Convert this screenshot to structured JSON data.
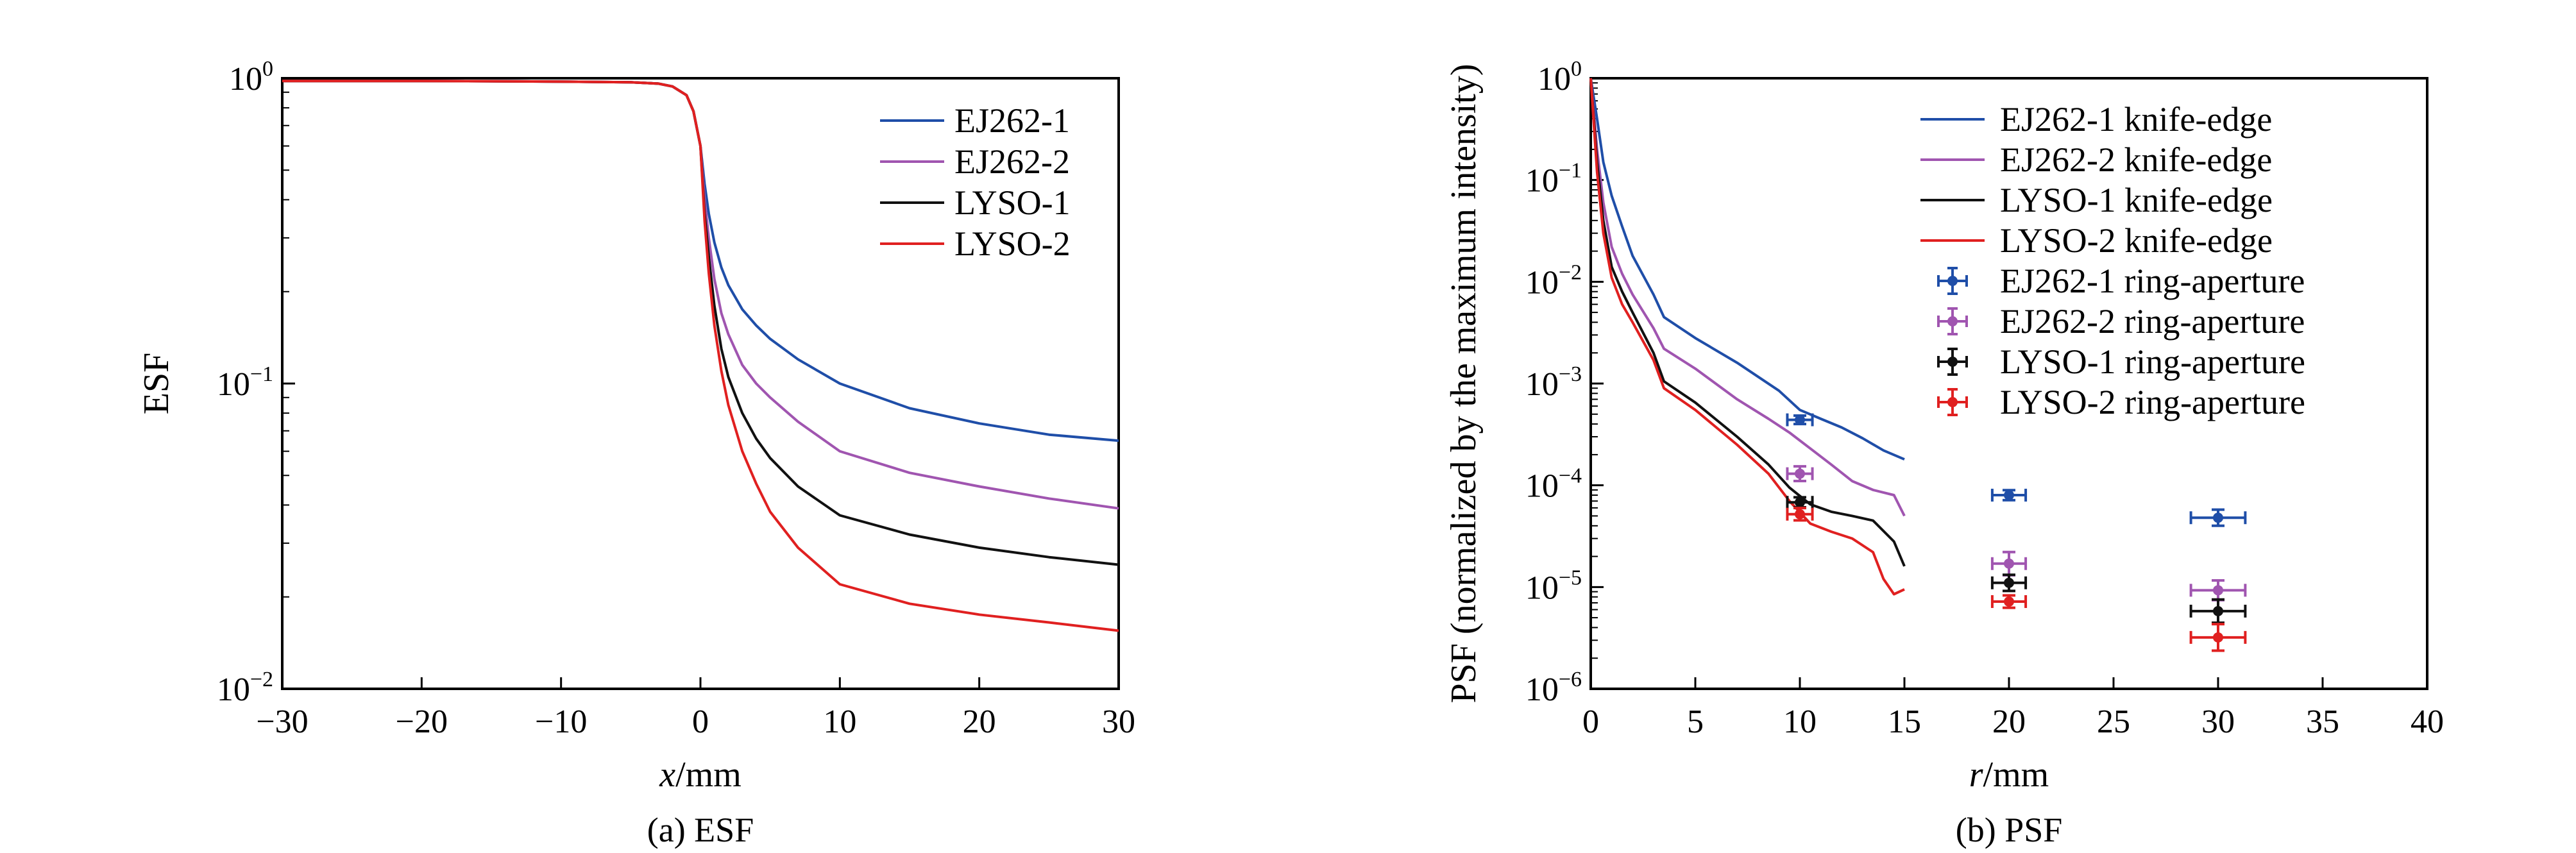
{
  "chart_data": [
    {
      "type": "line",
      "panel": "a",
      "caption": "(a) ESF",
      "xlabel_italic": "x",
      "xlabel_unit": "/mm",
      "ylabel": "ESF",
      "xlim": [
        -30,
        30
      ],
      "ylim": [
        0.01,
        1
      ],
      "yscale": "log",
      "grid": false,
      "legend_position": "top-right",
      "xticks": [
        "−30",
        "−20",
        "−10",
        "0",
        "10",
        "20",
        "30"
      ],
      "xtick_values": [
        -30,
        -20,
        -10,
        0,
        10,
        20,
        30
      ],
      "yticks": [
        {
          "base": "10",
          "exp": "0",
          "value": 1
        },
        {
          "base": "10",
          "exp": "−1",
          "value": 0.1
        },
        {
          "base": "10",
          "exp": "−2",
          "value": 0.01
        }
      ],
      "x": [
        -30,
        -20,
        -10,
        -5,
        -3,
        -2,
        -1,
        -0.5,
        0,
        0.3,
        0.6,
        1,
        1.5,
        2,
        3,
        4,
        5,
        7,
        10,
        15,
        20,
        25,
        30
      ],
      "series": [
        {
          "name": "EJ262-1",
          "color": "#1f4ea8",
          "values": [
            0.98,
            0.98,
            0.975,
            0.97,
            0.96,
            0.94,
            0.88,
            0.78,
            0.6,
            0.45,
            0.36,
            0.29,
            0.24,
            0.21,
            0.175,
            0.155,
            0.14,
            0.12,
            0.1,
            0.083,
            0.074,
            0.068,
            0.065
          ]
        },
        {
          "name": "EJ262-2",
          "color": "#a055b0",
          "values": [
            0.98,
            0.98,
            0.975,
            0.97,
            0.96,
            0.94,
            0.88,
            0.78,
            0.6,
            0.4,
            0.3,
            0.22,
            0.17,
            0.145,
            0.115,
            0.1,
            0.09,
            0.075,
            0.06,
            0.051,
            0.046,
            0.042,
            0.039
          ]
        },
        {
          "name": "LYSO-1",
          "color": "#111111",
          "values": [
            0.98,
            0.98,
            0.975,
            0.97,
            0.96,
            0.94,
            0.88,
            0.78,
            0.6,
            0.36,
            0.26,
            0.18,
            0.13,
            0.105,
            0.08,
            0.066,
            0.057,
            0.046,
            0.037,
            0.032,
            0.029,
            0.027,
            0.0255
          ]
        },
        {
          "name": "LYSO-2",
          "color": "#e02020",
          "values": [
            0.98,
            0.98,
            0.975,
            0.97,
            0.96,
            0.94,
            0.88,
            0.78,
            0.6,
            0.34,
            0.23,
            0.155,
            0.11,
            0.085,
            0.06,
            0.047,
            0.038,
            0.029,
            0.022,
            0.019,
            0.0175,
            0.0165,
            0.0155
          ]
        }
      ]
    },
    {
      "type": "line",
      "panel": "b",
      "caption": "(b) PSF",
      "xlabel_italic": "r",
      "xlabel_unit": "/mm",
      "ylabel": "PSF (normalized by the maximum intensity)",
      "xlim": [
        0,
        40
      ],
      "ylim": [
        1e-06,
        1
      ],
      "yscale": "log",
      "grid": false,
      "legend_position": "top-right",
      "xticks": [
        "0",
        "5",
        "10",
        "15",
        "20",
        "25",
        "30",
        "35",
        "40"
      ],
      "xtick_values": [
        0,
        5,
        10,
        15,
        20,
        25,
        30,
        35,
        40
      ],
      "yticks": [
        {
          "base": "10",
          "exp": "0",
          "value": 1
        },
        {
          "base": "10",
          "exp": "−1",
          "value": 0.1
        },
        {
          "base": "10",
          "exp": "−2",
          "value": 0.01
        },
        {
          "base": "10",
          "exp": "−3",
          "value": 0.001
        },
        {
          "base": "10",
          "exp": "−4",
          "value": 0.0001
        },
        {
          "base": "10",
          "exp": "−5",
          "value": 1e-05
        },
        {
          "base": "10",
          "exp": "−6",
          "value": 1e-06
        }
      ],
      "lines": [
        {
          "name": "EJ262-1 knife-edge",
          "color": "#1f4ea8",
          "x": [
            0,
            0.3,
            0.6,
            1,
            1.5,
            2,
            3,
            3.5,
            5,
            7,
            9,
            10,
            11,
            12,
            13,
            14,
            15
          ],
          "y": [
            1,
            0.4,
            0.15,
            0.07,
            0.035,
            0.018,
            0.0075,
            0.0045,
            0.0028,
            0.0016,
            0.00085,
            0.00055,
            0.00045,
            0.00037,
            0.00029,
            0.00022,
            0.00018
          ]
        },
        {
          "name": "EJ262-2 knife-edge",
          "color": "#a055b0",
          "x": [
            0,
            0.3,
            0.6,
            1,
            1.5,
            2,
            3,
            3.5,
            5,
            7,
            8.5,
            9.5,
            10.5,
            11.5,
            12.5,
            13.5,
            14.5,
            15
          ],
          "y": [
            1,
            0.2,
            0.06,
            0.022,
            0.012,
            0.0075,
            0.0035,
            0.0022,
            0.0014,
            0.0007,
            0.00045,
            0.00033,
            0.00023,
            0.00016,
            0.00011,
            9e-05,
            8e-05,
            5e-05
          ]
        },
        {
          "name": "LYSO-1 knife-edge",
          "color": "#111111",
          "x": [
            0,
            0.3,
            0.6,
            1,
            1.5,
            2,
            3,
            3.5,
            5,
            7,
            8.5,
            9.5,
            10.5,
            11.5,
            12.5,
            13.5,
            14.5,
            15
          ],
          "y": [
            1,
            0.15,
            0.04,
            0.014,
            0.008,
            0.005,
            0.002,
            0.00105,
            0.00065,
            0.0003,
            0.00016,
            9.5e-05,
            6.5e-05,
            5.5e-05,
            5e-05,
            4.5e-05,
            2.8e-05,
            1.6e-05
          ]
        },
        {
          "name": "LYSO-2 knife-edge",
          "color": "#e02020",
          "x": [
            0,
            0.3,
            0.6,
            1,
            1.5,
            2,
            3,
            3.5,
            5,
            7,
            8.5,
            9.5,
            10.5,
            11.5,
            12.5,
            13.5,
            14,
            14.5,
            15
          ],
          "y": [
            1,
            0.12,
            0.03,
            0.011,
            0.006,
            0.004,
            0.0017,
            0.0009,
            0.00055,
            0.00025,
            0.00013,
            7e-05,
            4.2e-05,
            3.5e-05,
            3e-05,
            2.2e-05,
            1.2e-05,
            8.5e-06,
            9.5e-06
          ]
        }
      ],
      "points": [
        {
          "name": "EJ262-1 ring-aperture",
          "color": "#1f4ea8",
          "x": [
            10,
            20,
            30
          ],
          "y": [
            0.00044,
            8e-05,
            4.8e-05
          ],
          "xerr": [
            0.6,
            0.8,
            1.3
          ],
          "yerr_factor": [
            1.1,
            1.12,
            1.2
          ]
        },
        {
          "name": "EJ262-2 ring-aperture",
          "color": "#a055b0",
          "x": [
            10,
            20,
            30
          ],
          "y": [
            0.00013,
            1.7e-05,
            9.3e-06
          ],
          "xerr": [
            0.6,
            0.8,
            1.3
          ],
          "yerr_factor": [
            1.18,
            1.3,
            1.25
          ]
        },
        {
          "name": "LYSO-1 ring-aperture",
          "color": "#111111",
          "x": [
            10,
            20,
            30
          ],
          "y": [
            6.8e-05,
            1.1e-05,
            5.8e-06
          ],
          "xerr": [
            0.6,
            0.8,
            1.3
          ],
          "yerr_factor": [
            1.12,
            1.2,
            1.3
          ]
        },
        {
          "name": "LYSO-2 ring-aperture",
          "color": "#e02020",
          "x": [
            10,
            20,
            30
          ],
          "y": [
            5.2e-05,
            7.2e-06,
            3.2e-06
          ],
          "xerr": [
            0.6,
            0.8,
            1.3
          ],
          "yerr_factor": [
            1.15,
            1.15,
            1.35
          ]
        }
      ]
    }
  ]
}
